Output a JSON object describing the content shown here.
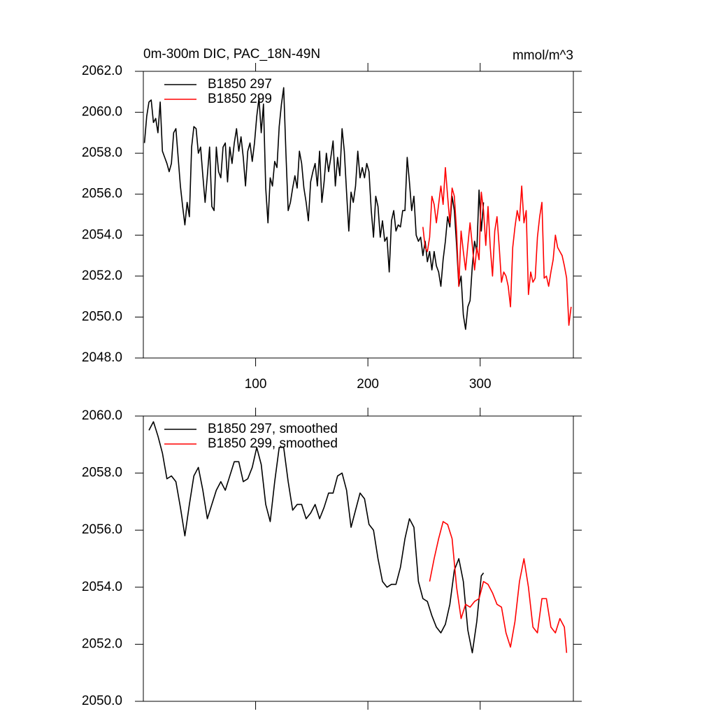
{
  "chart_data": [
    {
      "type": "line",
      "title": "0m-300m DIC, PAC_18N-49N",
      "units": "mmol/m^3",
      "xlim": [
        0,
        383
      ],
      "xticks": [
        100,
        200,
        300
      ],
      "xtick_labels": true,
      "ylim": [
        2048,
        2062
      ],
      "yticks": [
        {
          "value": 2048,
          "label": "2048.0"
        },
        {
          "value": 2050,
          "label": "2050.0"
        },
        {
          "value": 2052,
          "label": "2052.0"
        },
        {
          "value": 2054,
          "label": "2054.0"
        },
        {
          "value": 2056,
          "label": "2056.0"
        },
        {
          "value": 2058,
          "label": "2058.0"
        },
        {
          "value": 2060,
          "label": "2060.0"
        },
        {
          "value": 2062,
          "label": "2062.0"
        }
      ],
      "legend": "upper left",
      "series": [
        {
          "name": "B1850 297",
          "color": "#000000",
          "x": [
            1,
            3,
            5,
            7,
            9,
            11,
            13,
            15,
            17,
            19,
            21,
            23,
            25,
            27,
            29,
            31,
            33,
            35,
            37,
            39,
            41,
            43,
            45,
            47,
            49,
            51,
            53,
            55,
            57,
            59,
            61,
            63,
            65,
            67,
            69,
            71,
            73,
            75,
            77,
            79,
            81,
            83,
            85,
            87,
            89,
            91,
            93,
            95,
            97,
            99,
            101,
            103,
            105,
            107,
            109,
            111,
            113,
            115,
            117,
            119,
            121,
            123,
            125,
            127,
            129,
            131,
            133,
            135,
            137,
            139,
            141,
            143,
            145,
            147,
            149,
            151,
            153,
            155,
            157,
            159,
            161,
            163,
            165,
            167,
            169,
            171,
            173,
            175,
            177,
            179,
            181,
            183,
            185,
            187,
            189,
            191,
            193,
            195,
            197,
            199,
            201,
            203,
            205,
            207,
            209,
            211,
            213,
            215,
            217,
            219,
            221,
            223,
            225,
            227,
            229,
            231,
            233,
            235,
            237,
            239,
            241,
            243,
            245,
            247,
            249,
            251,
            253,
            255,
            257,
            259,
            261,
            263,
            265,
            267,
            269,
            271,
            273,
            275,
            277,
            279,
            281,
            283,
            285,
            287,
            289,
            291,
            293,
            295,
            297,
            299,
            301,
            303
          ],
          "values": [
            2058.5,
            2059.8,
            2060.5,
            2060.6,
            2059.5,
            2059.7,
            2059,
            2060.5,
            2058.1,
            2057.8,
            2057.5,
            2057.1,
            2057.5,
            2059,
            2059.2,
            2057.8,
            2056.4,
            2055.4,
            2054.5,
            2055.6,
            2054.9,
            2058.3,
            2059.3,
            2059.2,
            2058,
            2058.3,
            2056.9,
            2055.6,
            2056.9,
            2058.3,
            2055.4,
            2055.2,
            2058.3,
            2057.1,
            2056.8,
            2058.3,
            2058.5,
            2056.6,
            2058.3,
            2057.5,
            2058.5,
            2059.2,
            2058.1,
            2058.8,
            2057.8,
            2056.4,
            2058.1,
            2058.5,
            2057.6,
            2058.5,
            2059.8,
            2060.7,
            2059,
            2060.4,
            2056.3,
            2054.6,
            2056.8,
            2056.4,
            2057.6,
            2057.3,
            2059.3,
            2060.4,
            2061.2,
            2058,
            2055.2,
            2055.6,
            2056.3,
            2056.9,
            2056.3,
            2058.1,
            2057.5,
            2056.3,
            2055.6,
            2054.7,
            2056.6,
            2057.1,
            2057.5,
            2056.4,
            2058.1,
            2055.6,
            2056.6,
            2058,
            2057.1,
            2057.8,
            2058.6,
            2056.4,
            2057.8,
            2056.9,
            2059.2,
            2058.1,
            2056.1,
            2054.2,
            2056.1,
            2055.6,
            2056.4,
            2058.1,
            2056.8,
            2057.3,
            2056.8,
            2057.5,
            2057.1,
            2055.2,
            2053.9,
            2055.9,
            2055.4,
            2053.9,
            2054.7,
            2053.7,
            2053.9,
            2052.2,
            2054.7,
            2055.2,
            2054.2,
            2054.5,
            2054.4,
            2055.2,
            2055.2,
            2057.8,
            2056.6,
            2055.2,
            2055.9,
            2054,
            2053.7,
            2053.9,
            2053,
            2053.7,
            2052.7,
            2053.2,
            2052.3,
            2053.2,
            2052.5,
            2052.2,
            2051.5,
            2052.8,
            2053.7,
            2054.9,
            2054.4,
            2055.9,
            2055.2,
            2053.5,
            2051.5,
            2052,
            2050.1,
            2049.4,
            2050.5,
            2050.8,
            2052.5,
            2053.7,
            2053.2,
            2056.2,
            2054.2,
            2055.6
          ]
        },
        {
          "name": "B1850 299",
          "color": "#ff0000",
          "x": [
            249,
            251,
            253,
            255,
            257,
            259,
            261,
            263,
            265,
            267,
            269,
            271,
            273,
            275,
            277,
            279,
            281,
            283,
            285,
            287,
            289,
            291,
            293,
            295,
            297,
            299,
            301,
            303,
            305,
            307,
            309,
            311,
            313,
            315,
            317,
            319,
            321,
            323,
            325,
            327,
            329,
            331,
            333,
            335,
            337,
            339,
            341,
            343,
            345,
            347,
            349,
            351,
            353,
            355,
            357,
            359,
            361,
            363,
            365,
            367,
            369,
            371,
            373,
            375,
            377,
            379,
            381
          ],
          "values": [
            2054.4,
            2053.4,
            2053.2,
            2053.9,
            2055.9,
            2055.5,
            2054.6,
            2055.5,
            2056.4,
            2055.5,
            2057.3,
            2055.9,
            2054.6,
            2056.3,
            2055.9,
            2054.2,
            2051.5,
            2054.2,
            2053.2,
            2052.3,
            2053.5,
            2054.6,
            2053.5,
            2052.3,
            2053.4,
            2052.8,
            2056.1,
            2055.2,
            2053.5,
            2055.4,
            2053.4,
            2052,
            2054.2,
            2054.9,
            2053.4,
            2051.7,
            2052.2,
            2052,
            2051.5,
            2050.5,
            2053.4,
            2054.4,
            2055.2,
            2054.7,
            2056.4,
            2054.6,
            2055.2,
            2051.1,
            2052.2,
            2051.7,
            2051.9,
            2053.9,
            2054.9,
            2055.6,
            2051.9,
            2052,
            2051.5,
            2052.2,
            2052.8,
            2054,
            2053.4,
            2053.2,
            2053,
            2052.5,
            2051.9,
            2049.6,
            2050.5
          ]
        }
      ]
    },
    {
      "type": "line",
      "xlim": [
        0,
        383
      ],
      "xticks": [
        100,
        200,
        300
      ],
      "xtick_labels": false,
      "ylim": [
        2050,
        2060
      ],
      "yticks": [
        {
          "value": 2050,
          "label": "2050.0"
        },
        {
          "value": 2052,
          "label": "2052.0"
        },
        {
          "value": 2054,
          "label": "2054.0"
        },
        {
          "value": 2056,
          "label": "2056.0"
        },
        {
          "value": 2058,
          "label": "2058.0"
        },
        {
          "value": 2060,
          "label": "2060.0"
        }
      ],
      "legend": "upper left",
      "series": [
        {
          "name": "B1850 297, smoothed",
          "color": "#000000",
          "x": [
            5,
            9,
            13,
            17,
            21,
            25,
            29,
            33,
            37,
            41,
            45,
            49,
            53,
            57,
            61,
            65,
            69,
            73,
            77,
            81,
            85,
            89,
            93,
            97,
            101,
            105,
            109,
            113,
            117,
            121,
            125,
            129,
            133,
            137,
            141,
            145,
            149,
            153,
            157,
            161,
            165,
            169,
            173,
            177,
            181,
            185,
            189,
            193,
            197,
            201,
            205,
            209,
            213,
            217,
            221,
            225,
            229,
            233,
            237,
            241,
            245,
            249,
            253,
            257,
            261,
            265,
            269,
            273,
            277,
            281,
            285,
            289,
            293,
            297,
            301,
            303
          ],
          "values": [
            2059.5,
            2059.8,
            2059.3,
            2058.7,
            2057.8,
            2057.9,
            2057.7,
            2056.8,
            2055.8,
            2056.9,
            2057.9,
            2058.2,
            2057.4,
            2056.4,
            2056.9,
            2057.4,
            2057.7,
            2057.4,
            2057.9,
            2058.4,
            2058.4,
            2057.7,
            2057.8,
            2058.2,
            2058.9,
            2058.3,
            2056.9,
            2056.3,
            2057.7,
            2058.9,
            2058.9,
            2057.7,
            2056.7,
            2056.9,
            2056.9,
            2056.4,
            2056.6,
            2056.9,
            2056.4,
            2056.8,
            2057.3,
            2057.3,
            2057.9,
            2058,
            2057.4,
            2056.1,
            2056.7,
            2057.3,
            2057.1,
            2056.2,
            2056,
            2055,
            2054.2,
            2054,
            2054.1,
            2054.1,
            2054.7,
            2055.7,
            2056.4,
            2056.1,
            2054.2,
            2053.6,
            2053.5,
            2053,
            2052.6,
            2052.4,
            2052.7,
            2053.4,
            2054.6,
            2055,
            2054.2,
            2052.5,
            2051.7,
            2052.8,
            2054.4,
            2054.5
          ]
        },
        {
          "name": "B1850 299, smoothed",
          "color": "#ff0000",
          "x": [
            255,
            259,
            263,
            267,
            271,
            275,
            279,
            283,
            287,
            291,
            295,
            299,
            303,
            307,
            311,
            315,
            319,
            323,
            327,
            331,
            335,
            339,
            343,
            347,
            351,
            355,
            359,
            363,
            367,
            371,
            375,
            377
          ],
          "values": [
            2054.2,
            2055,
            2055.7,
            2056.3,
            2056.2,
            2055.7,
            2054,
            2052.9,
            2053.4,
            2053.3,
            2053.5,
            2053.6,
            2054.2,
            2054.1,
            2053.8,
            2053.4,
            2053.3,
            2052.4,
            2051.9,
            2052.8,
            2054.2,
            2055,
            2054,
            2052.6,
            2052.4,
            2053.6,
            2053.6,
            2052.6,
            2052.4,
            2052.9,
            2052.6,
            2051.7
          ]
        }
      ]
    }
  ]
}
